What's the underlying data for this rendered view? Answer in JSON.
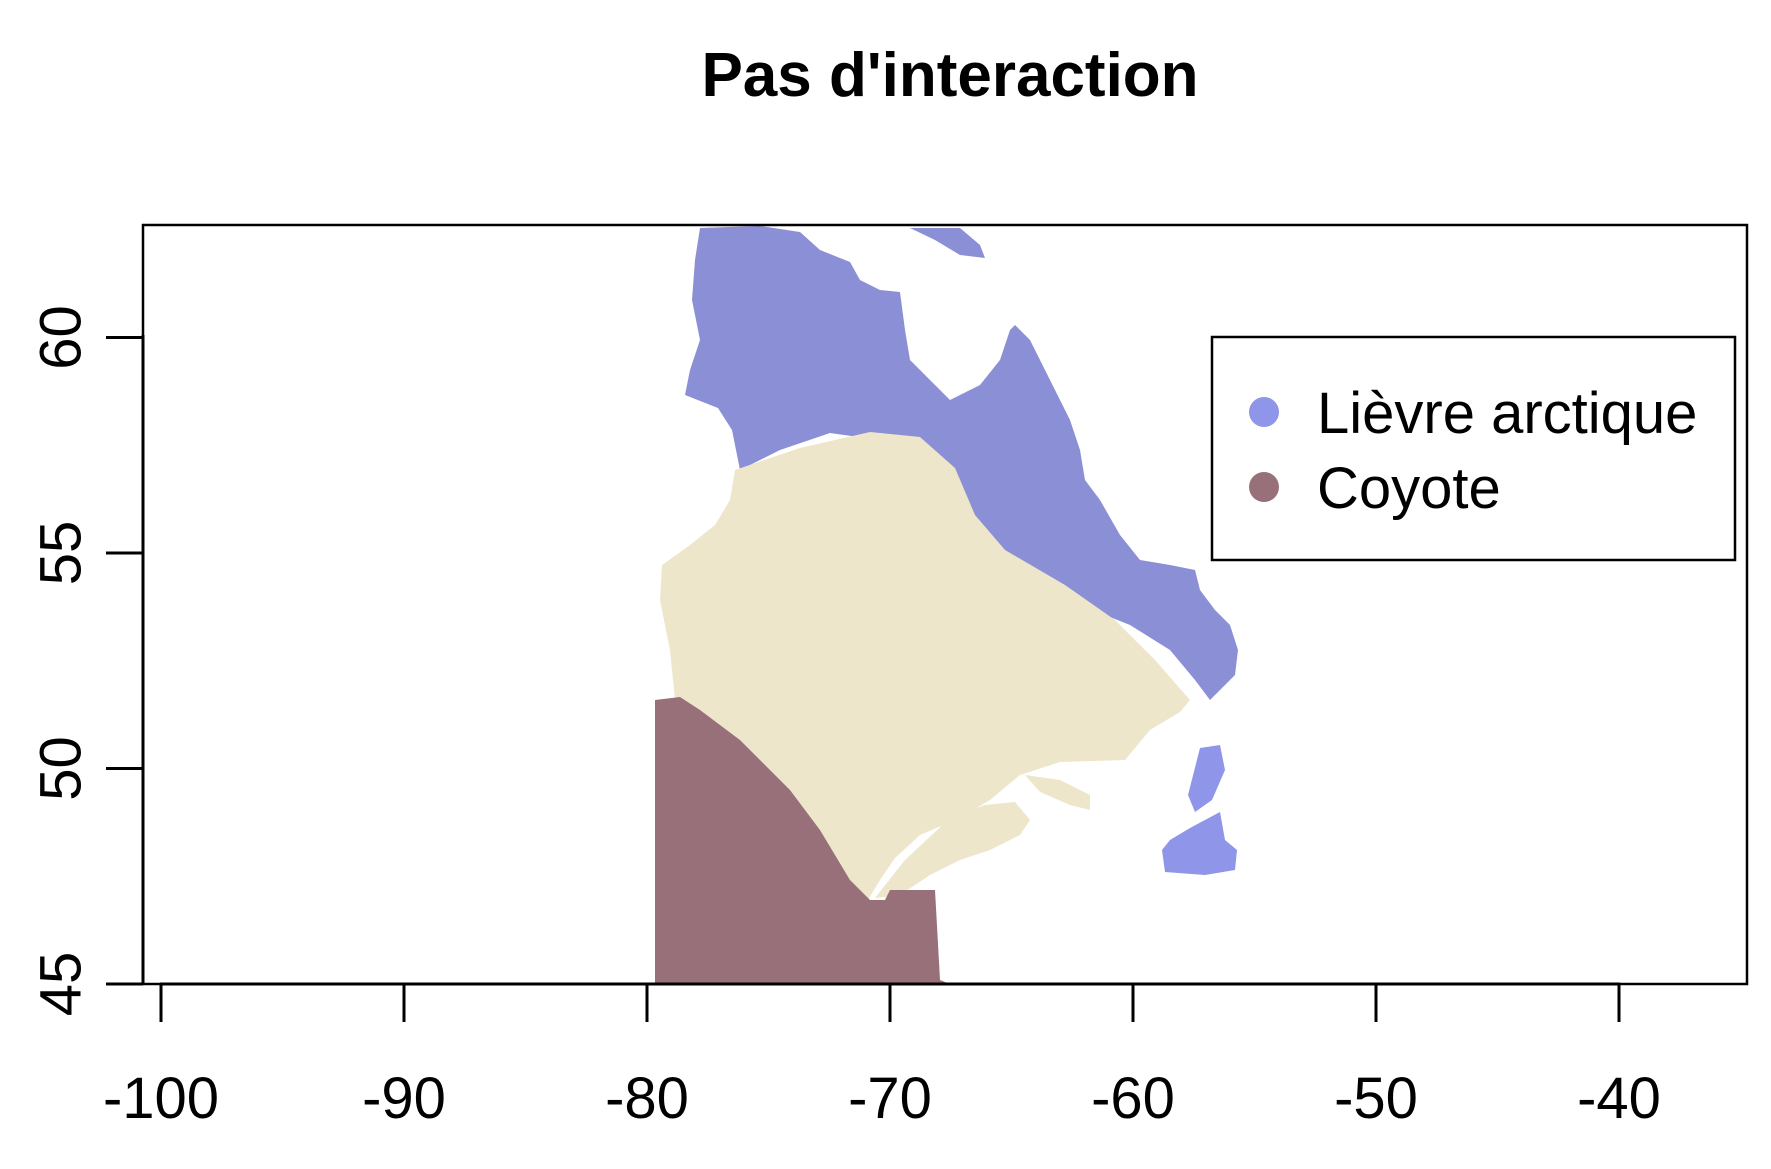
{
  "title": "Pas d'interaction",
  "axes": {
    "xlim": [
      -100,
      -40
    ],
    "ylim": [
      45,
      62
    ],
    "x_ticks": [
      -100,
      -90,
      -80,
      -70,
      -60,
      -50,
      -40
    ],
    "y_ticks": [
      45,
      50,
      55,
      60
    ],
    "x_tick_labels": [
      "-100",
      "-90",
      "-80",
      "-70",
      "-60",
      "-50",
      "-40"
    ],
    "y_tick_labels": [
      "45",
      "50",
      "55",
      "60"
    ]
  },
  "legend": {
    "position": "top-right",
    "items": [
      {
        "label": "Lièvre arctique",
        "color": "#8f95e8"
      },
      {
        "label": "Coyote",
        "color": "#98707a"
      }
    ]
  },
  "regions": {
    "lievre_color": "#8b8fd6",
    "overlap_color": "#ede6cb",
    "coyote_color": "#98707a"
  }
}
